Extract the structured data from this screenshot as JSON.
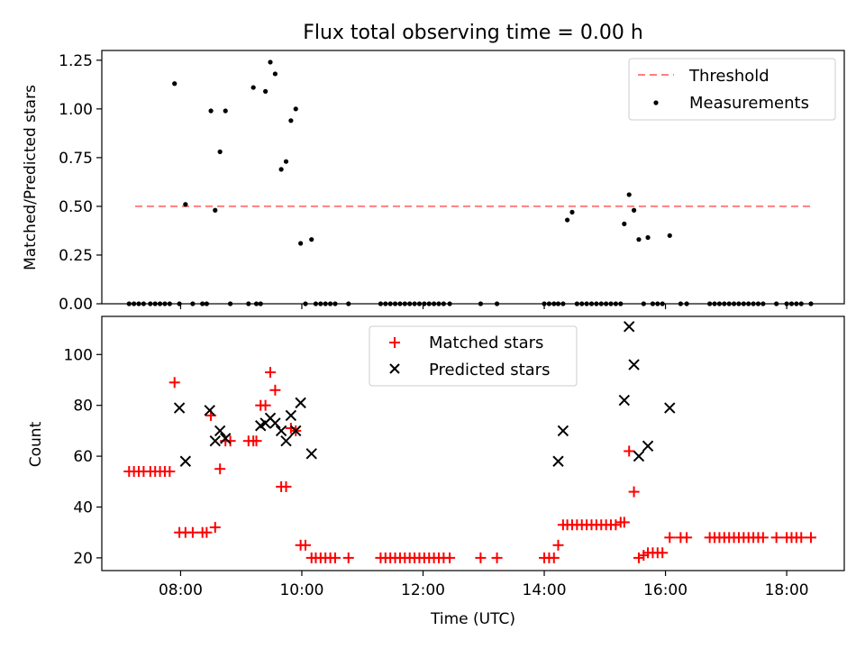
{
  "title": "Flux total observing time = 0.00 h",
  "chart_data": [
    {
      "type": "scatter",
      "xlabel": "",
      "ylabel": "Matched/Predicted stars",
      "xlim": [
        6.7,
        18.95
      ],
      "ylim": [
        0,
        1.3
      ],
      "yticks": [
        0,
        0.25,
        0.5,
        0.75,
        1.0,
        1.25
      ],
      "ytick_labels": [
        "0.00",
        "0.25",
        "0.50",
        "0.75",
        "1.00",
        "1.25"
      ],
      "xticks": [
        8,
        10,
        12,
        14,
        16,
        18
      ],
      "grid": false,
      "legend": "top-right",
      "threshold": {
        "name": "Threshold",
        "x": [
          7.25,
          18.4
        ],
        "y": 0.5,
        "color": "#ff7f7f"
      },
      "series": [
        {
          "name": "Measurements",
          "color": "#000000",
          "x": [
            7.15,
            7.23,
            7.31,
            7.39,
            7.5,
            7.58,
            7.66,
            7.74,
            7.82,
            7.9,
            7.98,
            8.08,
            8.2,
            8.36,
            8.43,
            8.5,
            8.57,
            8.65,
            8.74,
            8.82,
            9.12,
            9.2,
            9.25,
            9.32,
            9.4,
            9.48,
            9.56,
            9.66,
            9.74,
            9.82,
            9.9,
            9.98,
            10.06,
            10.16,
            10.23,
            10.31,
            10.39,
            10.47,
            10.55,
            10.77,
            11.3,
            11.38,
            11.46,
            11.54,
            11.62,
            11.7,
            11.78,
            11.86,
            11.94,
            12.02,
            12.1,
            12.18,
            12.26,
            12.34,
            12.44,
            12.95,
            13.22,
            14.0,
            14.08,
            14.16,
            14.23,
            14.31,
            14.38,
            14.46,
            14.54,
            14.62,
            14.7,
            14.78,
            14.86,
            14.94,
            15.02,
            15.1,
            15.18,
            15.26,
            15.32,
            15.4,
            15.48,
            15.56,
            15.64,
            15.71,
            15.79,
            15.87,
            15.95,
            16.07,
            16.25,
            16.35,
            16.73,
            16.81,
            16.89,
            16.97,
            17.05,
            17.13,
            17.21,
            17.29,
            17.37,
            17.45,
            17.53,
            17.61,
            17.83,
            18.0,
            18.08,
            18.16,
            18.24,
            18.4
          ],
          "y": [
            0,
            0,
            0,
            0,
            0,
            0,
            0,
            0,
            0,
            1.13,
            0,
            0.51,
            0,
            0,
            0,
            0.99,
            0.48,
            0.78,
            0.99,
            0,
            0,
            1.11,
            0,
            0,
            1.09,
            1.24,
            1.18,
            0.69,
            0.73,
            0.94,
            1.0,
            0.31,
            0,
            0.33,
            0,
            0,
            0,
            0,
            0,
            0,
            0,
            0,
            0,
            0,
            0,
            0,
            0,
            0,
            0,
            0,
            0,
            0,
            0,
            0,
            0,
            0,
            0,
            0,
            0,
            0,
            0,
            0,
            0.43,
            0.47,
            0,
            0,
            0,
            0,
            0,
            0,
            0,
            0,
            0,
            0,
            0.41,
            0.56,
            0.48,
            0.33,
            0,
            0.34,
            0,
            0,
            0,
            0.35,
            0,
            0,
            0,
            0,
            0,
            0,
            0,
            0,
            0,
            0,
            0,
            0,
            0,
            0,
            0,
            0,
            0,
            0,
            0,
            0
          ]
        }
      ]
    },
    {
      "type": "scatter",
      "xlabel": "Time (UTC)",
      "ylabel": "Count",
      "xlim": [
        6.7,
        18.95
      ],
      "ylim": [
        15,
        115
      ],
      "yticks": [
        20,
        40,
        60,
        80,
        100
      ],
      "xticks": [
        8,
        10,
        12,
        14,
        16,
        18
      ],
      "xtick_labels": [
        "08:00",
        "10:00",
        "12:00",
        "14:00",
        "16:00",
        "18:00"
      ],
      "grid": false,
      "legend": "top-center",
      "series": [
        {
          "name": "Matched stars",
          "marker": "plus",
          "color": "#ff0000",
          "x": [
            7.15,
            7.23,
            7.31,
            7.39,
            7.5,
            7.58,
            7.66,
            7.74,
            7.82,
            7.9,
            7.98,
            8.08,
            8.2,
            8.36,
            8.43,
            8.5,
            8.57,
            8.65,
            8.74,
            8.82,
            9.12,
            9.2,
            9.25,
            9.32,
            9.4,
            9.48,
            9.56,
            9.66,
            9.74,
            9.82,
            9.9,
            9.98,
            10.06,
            10.16,
            10.23,
            10.31,
            10.39,
            10.47,
            10.55,
            10.77,
            11.3,
            11.38,
            11.46,
            11.54,
            11.62,
            11.7,
            11.78,
            11.86,
            11.94,
            12.02,
            12.1,
            12.18,
            12.26,
            12.34,
            12.44,
            12.95,
            13.22,
            14.0,
            14.08,
            14.16,
            14.23,
            14.31,
            14.38,
            14.46,
            14.54,
            14.62,
            14.7,
            14.78,
            14.86,
            14.94,
            15.02,
            15.1,
            15.18,
            15.26,
            15.32,
            15.4,
            15.48,
            15.56,
            15.64,
            15.71,
            15.79,
            15.87,
            15.95,
            16.07,
            16.25,
            16.35,
            16.73,
            16.81,
            16.89,
            16.97,
            17.05,
            17.13,
            17.21,
            17.29,
            17.37,
            17.45,
            17.53,
            17.61,
            17.83,
            18.0,
            18.08,
            18.16,
            18.24,
            18.4
          ],
          "y": [
            54,
            54,
            54,
            54,
            54,
            54,
            54,
            54,
            54,
            89,
            30,
            30,
            30,
            30,
            30,
            76,
            32,
            55,
            66,
            66,
            66,
            66,
            66,
            80,
            80,
            93,
            86,
            48,
            48,
            71,
            70,
            25,
            25,
            20,
            20,
            20,
            20,
            20,
            20,
            20,
            20,
            20,
            20,
            20,
            20,
            20,
            20,
            20,
            20,
            20,
            20,
            20,
            20,
            20,
            20,
            20,
            20,
            20,
            20,
            20,
            25,
            33,
            33,
            33,
            33,
            33,
            33,
            33,
            33,
            33,
            33,
            33,
            33,
            34,
            34,
            62,
            46,
            20,
            21,
            22,
            22,
            22,
            22,
            28,
            28,
            28,
            28,
            28,
            28,
            28,
            28,
            28,
            28,
            28,
            28,
            28,
            28,
            28,
            28,
            28,
            28,
            28,
            28,
            28
          ]
        },
        {
          "name": "Predicted stars",
          "marker": "x",
          "color": "#000000",
          "x": [
            7.98,
            8.08,
            8.48,
            8.57,
            8.65,
            8.74,
            9.32,
            9.4,
            9.48,
            9.56,
            9.66,
            9.74,
            9.82,
            9.9,
            9.98,
            10.16,
            14.23,
            14.31,
            15.32,
            15.4,
            15.48,
            15.56,
            15.71,
            16.07
          ],
          "y": [
            79,
            58,
            78,
            66,
            70,
            67,
            72,
            73,
            75,
            73,
            70,
            66,
            76,
            70,
            81,
            61,
            58,
            70,
            82,
            111,
            96,
            60,
            64,
            79
          ]
        }
      ]
    }
  ]
}
